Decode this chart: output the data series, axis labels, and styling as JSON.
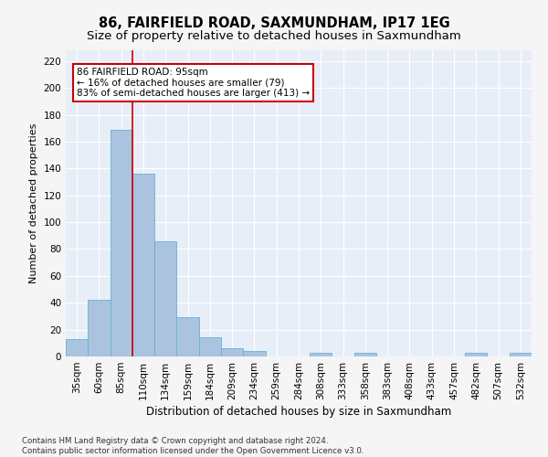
{
  "title": "86, FAIRFIELD ROAD, SAXMUNDHAM, IP17 1EG",
  "subtitle": "Size of property relative to detached houses in Saxmundham",
  "xlabel": "Distribution of detached houses by size in Saxmundham",
  "ylabel": "Number of detached properties",
  "footer_line1": "Contains HM Land Registry data © Crown copyright and database right 2024.",
  "footer_line2": "Contains public sector information licensed under the Open Government Licence v3.0.",
  "bar_labels": [
    "35sqm",
    "60sqm",
    "85sqm",
    "110sqm",
    "134sqm",
    "159sqm",
    "184sqm",
    "209sqm",
    "234sqm",
    "259sqm",
    "284sqm",
    "308sqm",
    "333sqm",
    "358sqm",
    "383sqm",
    "408sqm",
    "433sqm",
    "457sqm",
    "482sqm",
    "507sqm",
    "532sqm"
  ],
  "bar_values": [
    13,
    42,
    169,
    136,
    86,
    29,
    14,
    6,
    4,
    0,
    0,
    3,
    0,
    3,
    0,
    0,
    0,
    0,
    3,
    0,
    3
  ],
  "bar_color": "#aac4e0",
  "bar_edge_color": "#6aafd4",
  "background_color": "#e8eef8",
  "grid_color": "#ffffff",
  "annotation_text": "86 FAIRFIELD ROAD: 95sqm\n← 16% of detached houses are smaller (79)\n83% of semi-detached houses are larger (413) →",
  "annotation_box_color": "#ffffff",
  "annotation_box_edge_color": "#cc0000",
  "vline_x": 2.5,
  "vline_color": "#cc0000",
  "ylim": [
    0,
    228
  ],
  "yticks": [
    0,
    20,
    40,
    60,
    80,
    100,
    120,
    140,
    160,
    180,
    200,
    220
  ],
  "title_fontsize": 10.5,
  "subtitle_fontsize": 9.5,
  "xlabel_fontsize": 8.5,
  "ylabel_fontsize": 8,
  "tick_fontsize": 7.5,
  "annotation_fontsize": 7.5
}
